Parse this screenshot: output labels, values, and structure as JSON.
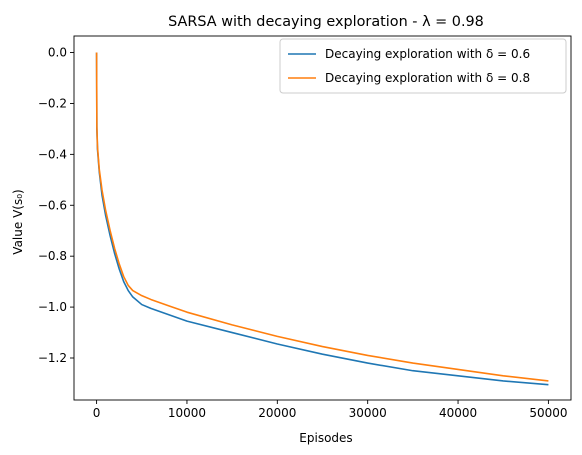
{
  "chart_data": {
    "type": "line",
    "title": "SARSA with decaying exploration - λ = 0.98",
    "xlabel": "Episodes",
    "ylabel": "Value V(s₀)",
    "xlim": [
      -2500,
      52500
    ],
    "ylim": [
      -1.365,
      0.065
    ],
    "xticks": [
      0,
      10000,
      20000,
      30000,
      40000,
      50000
    ],
    "xtick_labels": [
      "0",
      "10000",
      "20000",
      "30000",
      "40000",
      "50000"
    ],
    "yticks": [
      0.0,
      -0.2,
      -0.4,
      -0.6,
      -0.8,
      -1.0,
      -1.2
    ],
    "ytick_labels": [
      "0.0",
      "−0.2",
      "−0.4",
      "−0.6",
      "−0.8",
      "−1.0",
      "−1.2"
    ],
    "grid": false,
    "legend_position": "top-right",
    "series": [
      {
        "name": "Decaying exploration with δ = 0.6",
        "color": "#1f77b4",
        "x": [
          0,
          30,
          100,
          300,
          600,
          1000,
          1500,
          2000,
          2500,
          3000,
          3500,
          4000,
          5000,
          6000,
          8000,
          10000,
          15000,
          20000,
          25000,
          30000,
          35000,
          40000,
          45000,
          50000
        ],
        "y": [
          0.0,
          -0.3,
          -0.38,
          -0.47,
          -0.56,
          -0.64,
          -0.72,
          -0.79,
          -0.85,
          -0.9,
          -0.935,
          -0.96,
          -0.99,
          -1.005,
          -1.03,
          -1.055,
          -1.1,
          -1.145,
          -1.185,
          -1.22,
          -1.25,
          -1.27,
          -1.29,
          -1.305
        ]
      },
      {
        "name": "Decaying exploration with δ = 0.8",
        "color": "#ff7f0e",
        "x": [
          0,
          30,
          100,
          300,
          600,
          1000,
          1500,
          2000,
          2500,
          3000,
          3500,
          4000,
          5000,
          6000,
          8000,
          10000,
          15000,
          20000,
          25000,
          30000,
          35000,
          40000,
          45000,
          50000
        ],
        "y": [
          0.0,
          -0.29,
          -0.37,
          -0.46,
          -0.54,
          -0.62,
          -0.7,
          -0.77,
          -0.83,
          -0.88,
          -0.915,
          -0.935,
          -0.955,
          -0.97,
          -0.995,
          -1.02,
          -1.07,
          -1.115,
          -1.155,
          -1.19,
          -1.22,
          -1.245,
          -1.27,
          -1.29
        ]
      }
    ]
  }
}
